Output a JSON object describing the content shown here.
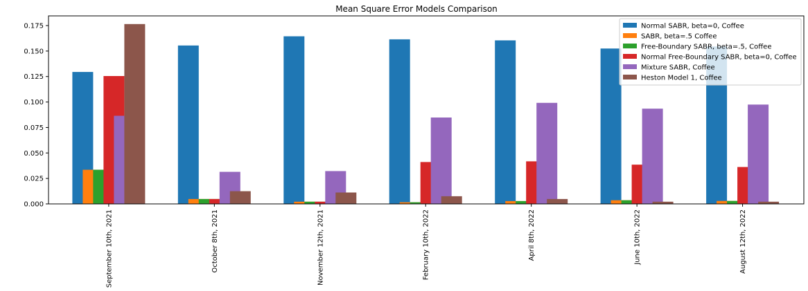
{
  "chart_data": {
    "type": "bar",
    "title": "Mean Square Error Models Comparison",
    "xlabel": "",
    "ylabel": "",
    "ylim": [
      0,
      0.1845
    ],
    "yticks": [
      "0.000",
      "0.025",
      "0.050",
      "0.075",
      "0.100",
      "0.125",
      "0.150",
      "0.175"
    ],
    "categories": [
      "September 10th, 2021",
      "October 8th, 2021",
      "November 12th, 2021",
      "February 10th, 2022",
      "April 8th, 2022",
      "June 10th, 2022",
      "August 12th, 2022"
    ],
    "legend_position": "top-right",
    "grid": false,
    "series": [
      {
        "name": "Normal SABR, beta=0, Coffee",
        "color": "#1f77b4",
        "values": [
          0.1295,
          0.1555,
          0.1645,
          0.1615,
          0.1605,
          0.1525,
          0.1545
        ]
      },
      {
        "name": "SABR, beta=.5 Coffee",
        "color": "#ff7f0e",
        "values": [
          0.0335,
          0.0048,
          0.0022,
          0.0016,
          0.0028,
          0.0036,
          0.0029
        ]
      },
      {
        "name": "Free-Boundary SABR, beta=.5, Coffee",
        "color": "#2ca02c",
        "values": [
          0.0335,
          0.0048,
          0.0022,
          0.0016,
          0.0028,
          0.0036,
          0.0029
        ]
      },
      {
        "name": "Normal Free-Boundary SABR, beta=0, Coffee",
        "color": "#d62728",
        "values": [
          0.1255,
          0.0048,
          0.0022,
          0.0411,
          0.0418,
          0.0385,
          0.0362
        ]
      },
      {
        "name": "Mixture SABR, Coffee",
        "color": "#9467bd",
        "values": [
          0.0865,
          0.0315,
          0.0322,
          0.0848,
          0.0992,
          0.0935,
          0.0975
        ]
      },
      {
        "name": "Heston Model 1, Coffee",
        "color": "#8c564b",
        "values": [
          0.1765,
          0.0125,
          0.0112,
          0.0075,
          0.0048,
          0.0022,
          0.0022
        ]
      }
    ]
  }
}
